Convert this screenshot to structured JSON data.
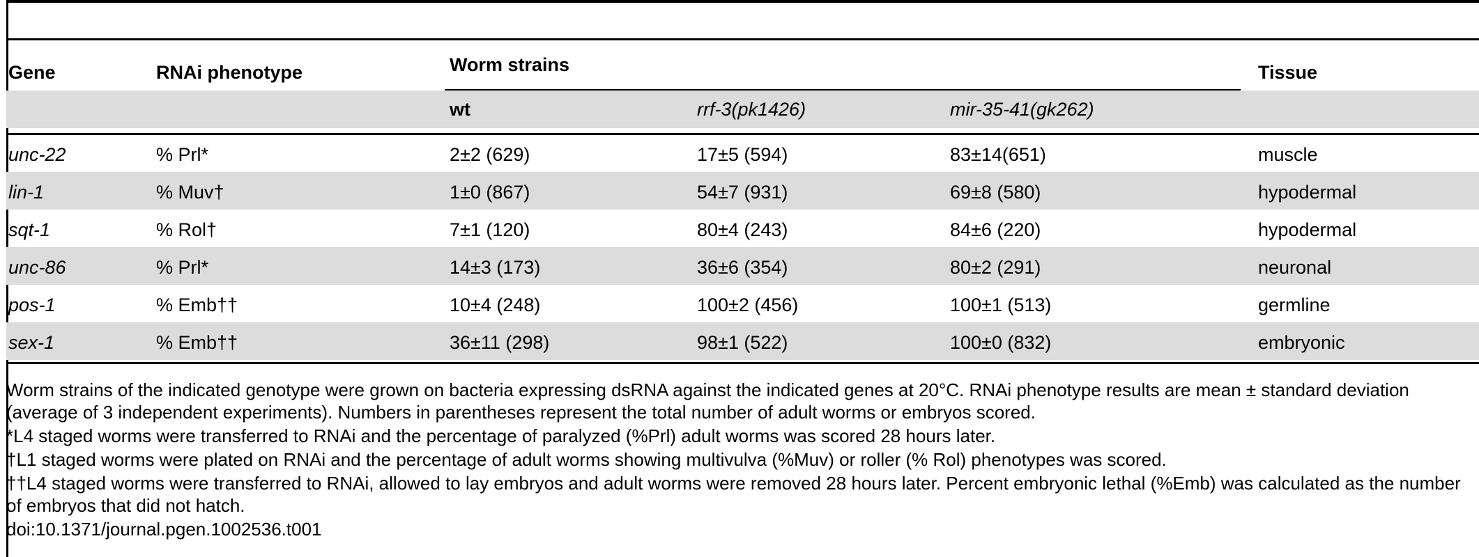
{
  "table": {
    "headers": {
      "gene": "Gene",
      "phenotype": "RNAi phenotype",
      "strains": "Worm strains",
      "tissue": "Tissue",
      "wt": "wt",
      "rrf3": "rrf-3(pk1426)",
      "mir": "mir-35-41(gk262)"
    },
    "rows": [
      {
        "gene": "unc-22",
        "phenotype": "% Prl*",
        "wt": "2±2 (629)",
        "rrf3": "17±5 (594)",
        "mir": "83±14(651)",
        "tissue": "muscle"
      },
      {
        "gene": "lin-1",
        "phenotype": "% Muv†",
        "wt": "1±0 (867)",
        "rrf3": "54±7 (931)",
        "mir": "69±8 (580)",
        "tissue": "hypodermal"
      },
      {
        "gene": "sqt-1",
        "phenotype": "% Rol†",
        "wt": "7±1 (120)",
        "rrf3": "80±4 (243)",
        "mir": "84±6 (220)",
        "tissue": "hypodermal"
      },
      {
        "gene": "unc-86",
        "phenotype": "% Prl*",
        "wt": "14±3 (173)",
        "rrf3": "36±6 (354)",
        "mir": "80±2 (291)",
        "tissue": "neuronal"
      },
      {
        "gene": "pos-1",
        "phenotype": "% Emb††",
        "wt": "10±4 (248)",
        "rrf3": "100±2 (456)",
        "mir": "100±1 (513)",
        "tissue": "germline"
      },
      {
        "gene": "sex-1",
        "phenotype": "% Emb††",
        "wt": "36±11 (298)",
        "rrf3": "98±1 (522)",
        "mir": "100±0 (832)",
        "tissue": "embryonic"
      }
    ]
  },
  "notes": {
    "main": "Worm strains of the indicated genotype were grown on bacteria expressing dsRNA against the indicated genes at 20°C. RNAi phenotype results are mean ± standard deviation (average of 3 independent experiments). Numbers in parentheses represent the total number of adult worms or embryos scored.",
    "star": "*L4 staged worms were transferred to RNAi and the percentage of paralyzed (%Prl) adult worms was scored 28 hours later.",
    "dagger": "†L1 staged worms were plated on RNAi and the percentage of adult worms showing multivulva (%Muv) or roller (% Rol) phenotypes was scored.",
    "double_dagger": "††L4 staged worms were transferred to RNAi, allowed to lay embryos and adult worms were removed 28 hours later. Percent embryonic lethal (%Emb) was calculated as the number of embryos that did not hatch.",
    "doi": "doi:10.1371/journal.pgen.1002536.t001"
  }
}
